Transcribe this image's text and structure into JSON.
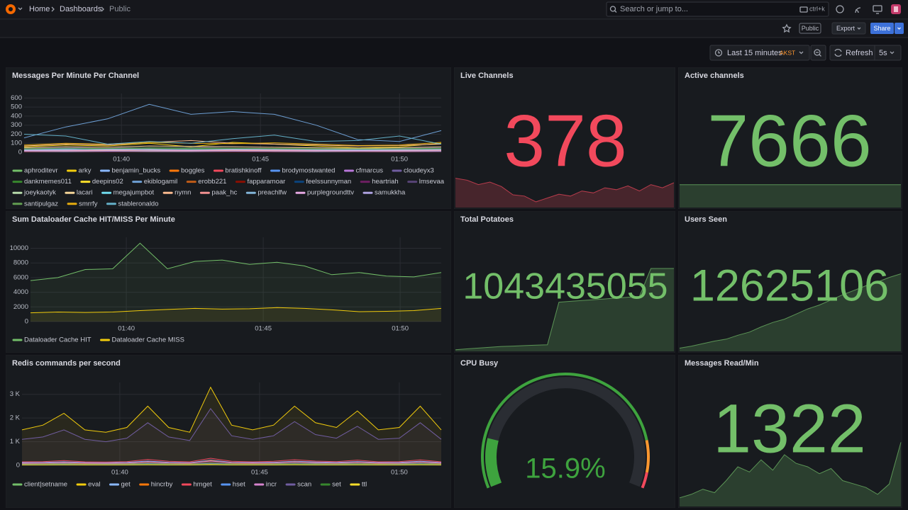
{
  "header": {
    "breadcrumb": [
      "Home",
      "Dashboards",
      "Public"
    ],
    "search_placeholder": "Search or jump to...",
    "search_shortcut": "ctrl+k"
  },
  "toolbar": {
    "badge": "Public",
    "export": "Export",
    "share": "Share",
    "time_range": "Last 15 minutes",
    "timezone": "AKST",
    "refresh": "Refresh",
    "refresh_interval": "5s"
  },
  "chart_data": [
    {
      "type": "timeseries",
      "title": "Messages Per Minute Per Channel",
      "x": [
        96.5,
        98,
        99.5,
        101,
        102.5,
        104,
        105.5,
        107,
        108.5,
        110,
        111.5
      ],
      "xlim": [
        96.5,
        111.5
      ],
      "xticks": [
        {
          "value": 100,
          "label": "01:40"
        },
        {
          "value": 105,
          "label": "01:45"
        },
        {
          "value": 110,
          "label": "01:50"
        }
      ],
      "ylim": [
        0,
        650
      ],
      "yticks": [
        0,
        100,
        200,
        300,
        400,
        500,
        600
      ],
      "grid": true,
      "fill_opacity": 0,
      "series": [
        {
          "name": "aphroditevr",
          "color": "#73bf69",
          "values": [
            20,
            25,
            30,
            22,
            28,
            35,
            30,
            25,
            20,
            22,
            30
          ]
        },
        {
          "name": "arky",
          "color": "#f2cc0c",
          "values": [
            60,
            80,
            70,
            100,
            60,
            110,
            90,
            70,
            50,
            60,
            100
          ]
        },
        {
          "name": "benjamin_bucks",
          "color": "#8ab8ff",
          "values": [
            40,
            35,
            30,
            45,
            50,
            40,
            35,
            30,
            25,
            40,
            45
          ]
        },
        {
          "name": "boggles",
          "color": "#ff780a",
          "values": [
            15,
            20,
            18,
            25,
            22,
            20,
            18,
            15,
            20,
            22,
            25
          ]
        },
        {
          "name": "bratishkinoff",
          "color": "#f2495c",
          "values": [
            10,
            12,
            15,
            10,
            12,
            18,
            15,
            10,
            8,
            10,
            12
          ]
        },
        {
          "name": "brodymostwanted",
          "color": "#5794f2",
          "values": [
            30,
            40,
            35,
            50,
            45,
            40,
            35,
            30,
            35,
            40,
            50
          ]
        },
        {
          "name": "cfmarcus",
          "color": "#b877d9",
          "values": [
            25,
            20,
            30,
            28,
            25,
            22,
            30,
            25,
            20,
            18,
            22
          ]
        },
        {
          "name": "cloudeyx3",
          "color": "#705da0",
          "values": [
            12,
            15,
            10,
            14,
            18,
            12,
            10,
            15,
            12,
            10,
            14
          ]
        },
        {
          "name": "dankmemes011",
          "color": "#37872d",
          "values": [
            35,
            30,
            40,
            45,
            38,
            42,
            40,
            35,
            30,
            32,
            40
          ]
        },
        {
          "name": "deepins02",
          "color": "#fade2a",
          "values": [
            8,
            10,
            12,
            10,
            8,
            12,
            10,
            8,
            10,
            12,
            10
          ]
        },
        {
          "name": "ekiblogamil",
          "color": "#6d9fd4",
          "values": [
            160,
            280,
            370,
            530,
            420,
            450,
            420,
            300,
            140,
            120,
            240
          ]
        },
        {
          "name": "erobb221",
          "color": "#c15c17",
          "values": [
            18,
            22,
            25,
            20,
            18,
            25,
            22,
            20,
            15,
            18,
            20
          ]
        },
        {
          "name": "fapparamoar",
          "color": "#890f02",
          "values": [
            5,
            8,
            6,
            10,
            8,
            6,
            5,
            8,
            6,
            5,
            8
          ]
        },
        {
          "name": "feelssunnyman",
          "color": "#0a437c",
          "values": [
            22,
            18,
            25,
            30,
            28,
            20,
            22,
            25,
            20,
            18,
            22
          ]
        },
        {
          "name": "heartriah",
          "color": "#6d1f62",
          "values": [
            10,
            12,
            8,
            15,
            12,
            10,
            8,
            12,
            10,
            8,
            10
          ]
        },
        {
          "name": "lmsevaa",
          "color": "#584477",
          "values": [
            45,
            50,
            55,
            48,
            52,
            60,
            55,
            50,
            45,
            48,
            52
          ]
        },
        {
          "name": "joeykaotyk",
          "color": "#b7dbab",
          "values": [
            28,
            32,
            30,
            35,
            30,
            28,
            32,
            30,
            28,
            30,
            32
          ]
        },
        {
          "name": "lacari",
          "color": "#f4d598",
          "values": [
            50,
            60,
            55,
            70,
            65,
            60,
            55,
            50,
            45,
            50,
            60
          ]
        },
        {
          "name": "megajumpbot",
          "color": "#70dbed",
          "values": [
            15,
            18,
            20,
            16,
            18,
            22,
            20,
            18,
            15,
            16,
            18
          ]
        },
        {
          "name": "nymn",
          "color": "#f9ba8f",
          "values": [
            70,
            90,
            80,
            110,
            130,
            100,
            90,
            80,
            70,
            75,
            90
          ]
        },
        {
          "name": "paak_hc",
          "color": "#f29191",
          "values": [
            12,
            15,
            18,
            14,
            16,
            20,
            18,
            15,
            12,
            14,
            16
          ]
        },
        {
          "name": "preachlfw",
          "color": "#82b5d8",
          "values": [
            30,
            28,
            35,
            32,
            30,
            35,
            32,
            30,
            28,
            30,
            34
          ]
        },
        {
          "name": "purplegroundttv",
          "color": "#e5a8e2",
          "values": [
            20,
            22,
            25,
            24,
            22,
            26,
            24,
            22,
            20,
            22,
            24
          ]
        },
        {
          "name": "samukkha",
          "color": "#aea2e0",
          "values": [
            10,
            8,
            12,
            10,
            9,
            12,
            10,
            8,
            10,
            9,
            11
          ]
        },
        {
          "name": "santipulgaz",
          "color": "#629e51",
          "values": [
            40,
            45,
            42,
            50,
            48,
            45,
            42,
            40,
            38,
            40,
            45
          ]
        },
        {
          "name": "smrrfy",
          "color": "#e5ac0e",
          "values": [
            80,
            100,
            90,
            110,
            100,
            95,
            105,
            90,
            75,
            80,
            110
          ]
        },
        {
          "name": "stableronaldo",
          "color": "#64b0c8",
          "values": [
            200,
            180,
            90,
            120,
            100,
            150,
            190,
            120,
            130,
            180,
            90
          ]
        }
      ]
    },
    {
      "type": "stat",
      "title": "Live Channels",
      "value": 378,
      "color": "#f2495c",
      "sparkline": [
        392,
        386,
        372,
        380,
        366,
        340,
        336,
        318,
        330,
        342,
        336,
        352,
        346,
        362,
        356,
        368,
        352,
        372,
        362,
        378
      ],
      "sparkline_ylim": [
        300,
        440
      ]
    },
    {
      "type": "stat",
      "title": "Active channels",
      "value": 7666,
      "color": "#73bf69",
      "sparkline": [
        7666,
        7666,
        7666,
        7666,
        7666,
        7666,
        7666,
        7666,
        7666,
        7666,
        7666,
        7666,
        7666,
        7666,
        7666,
        7666,
        7666,
        7666,
        7666,
        7666
      ],
      "sparkline_ylim": [
        0,
        15000
      ]
    },
    {
      "type": "timeseries",
      "title": "Sum Dataloader Cache HIT/MISS Per Minute",
      "x": [
        96.5,
        97.5,
        98.5,
        99.5,
        100.5,
        101.5,
        102.5,
        103.5,
        104.5,
        105.5,
        106.5,
        107.5,
        108.5,
        109.5,
        110.5,
        111.5
      ],
      "xlim": [
        96.5,
        111.5
      ],
      "xticks": [
        {
          "value": 100,
          "label": "01:40"
        },
        {
          "value": 105,
          "label": "01:45"
        },
        {
          "value": 110,
          "label": "01:50"
        }
      ],
      "ylim": [
        0,
        11500
      ],
      "yticks": [
        0,
        2000,
        4000,
        6000,
        8000,
        10000
      ],
      "grid": true,
      "fill_opacity": 0.08,
      "series": [
        {
          "name": "Dataloader Cache HIT",
          "color": "#73bf69",
          "values": [
            5600,
            6000,
            7100,
            7200,
            10700,
            7200,
            8200,
            8400,
            7800,
            8100,
            7600,
            6400,
            6700,
            6200,
            6100,
            6700
          ]
        },
        {
          "name": "Dataloader Cache MISS",
          "color": "#f2cc0c",
          "values": [
            1200,
            1300,
            1250,
            1300,
            1500,
            1650,
            1800,
            1700,
            1750,
            1900,
            1800,
            1600,
            1350,
            1400,
            1500,
            1800
          ]
        }
      ]
    },
    {
      "type": "stat",
      "title": "Total Potatoes",
      "value": 1043435055,
      "color": "#73bf69",
      "sparkline": [
        1043430100,
        1043430150,
        1043430200,
        1043430250,
        1043430300,
        1043430320,
        1043430350,
        1043430380,
        1043430400,
        1043433000,
        1043433050,
        1043433100,
        1043433150,
        1043433200,
        1043433250,
        1043433300,
        1043433350,
        1043435055,
        1043435055,
        1043435055
      ],
      "sparkline_ylim": [
        1043430000,
        1043435100
      ]
    },
    {
      "type": "stat",
      "title": "Users Seen",
      "value": 12625106,
      "color": "#73bf69",
      "sparkline": [
        12623950,
        12623980,
        12624020,
        12624060,
        12624090,
        12624150,
        12624200,
        12624280,
        12624350,
        12624400,
        12624480,
        12624560,
        12624620,
        12624700,
        12624780,
        12624850,
        12624920,
        12624980,
        12625050,
        12625106
      ],
      "sparkline_ylim": [
        12623900,
        12625200
      ]
    },
    {
      "type": "timeseries",
      "title": "Redis commands per second",
      "x": [
        96.5,
        97.25,
        98,
        98.75,
        99.5,
        100.25,
        101,
        101.75,
        102.5,
        103.25,
        104,
        104.75,
        105.5,
        106.25,
        107,
        107.75,
        108.5,
        109.25,
        110,
        110.75,
        111.5
      ],
      "xlim": [
        96.5,
        111.5
      ],
      "xticks": [
        {
          "value": 100,
          "label": "01:40"
        },
        {
          "value": 105,
          "label": "01:45"
        },
        {
          "value": 110,
          "label": "01:50"
        }
      ],
      "ylim": [
        0,
        3500
      ],
      "yticks": [
        0,
        {
          "value": 1000,
          "label": "1 K"
        },
        {
          "value": 2000,
          "label": "2 K"
        },
        {
          "value": 3000,
          "label": "3 K"
        }
      ],
      "grid": true,
      "fill_opacity": 0.08,
      "series": [
        {
          "name": "client|setname",
          "color": "#73bf69",
          "values": [
            60,
            70,
            80,
            60,
            70,
            65,
            90,
            70,
            60,
            100,
            70,
            65,
            70,
            90,
            75,
            65,
            85,
            60,
            70,
            90,
            60
          ]
        },
        {
          "name": "eval",
          "color": "#f2cc0c",
          "values": [
            1500,
            1700,
            2200,
            1500,
            1400,
            1600,
            2500,
            1600,
            1400,
            3300,
            1700,
            1500,
            1700,
            2500,
            1800,
            1600,
            2300,
            1500,
            1600,
            2500,
            1500
          ]
        },
        {
          "name": "get",
          "color": "#8ab8ff",
          "values": [
            120,
            130,
            150,
            120,
            110,
            125,
            180,
            130,
            115,
            220,
            130,
            120,
            130,
            170,
            140,
            125,
            160,
            120,
            130,
            170,
            120
          ]
        },
        {
          "name": "hincrby",
          "color": "#ff780a",
          "values": [
            80,
            90,
            110,
            85,
            80,
            90,
            140,
            95,
            85,
            200,
            100,
            85,
            95,
            150,
            105,
            90,
            130,
            85,
            90,
            140,
            85
          ]
        },
        {
          "name": "hmget",
          "color": "#f2495c",
          "values": [
            150,
            160,
            200,
            150,
            140,
            160,
            250,
            170,
            150,
            300,
            170,
            150,
            170,
            240,
            180,
            160,
            220,
            150,
            160,
            230,
            150
          ]
        },
        {
          "name": "hset",
          "color": "#5794f2",
          "values": [
            40,
            45,
            50,
            40,
            38,
            42,
            60,
            45,
            40,
            70,
            45,
            40,
            45,
            55,
            48,
            42,
            52,
            40,
            44,
            56,
            40
          ]
        },
        {
          "name": "incr",
          "color": "#d683ce",
          "values": [
            90,
            100,
            120,
            95,
            90,
            100,
            150,
            105,
            95,
            180,
            110,
            95,
            105,
            145,
            115,
            100,
            135,
            95,
            100,
            140,
            95
          ]
        },
        {
          "name": "scan",
          "color": "#705da0",
          "values": [
            1100,
            1200,
            1500,
            1100,
            1000,
            1150,
            1800,
            1200,
            1050,
            2400,
            1250,
            1100,
            1250,
            1850,
            1300,
            1150,
            1650,
            1100,
            1150,
            1800,
            1100
          ]
        },
        {
          "name": "set",
          "color": "#37872d",
          "values": [
            30,
            35,
            40,
            32,
            30,
            34,
            45,
            36,
            32,
            55,
            36,
            32,
            36,
            44,
            38,
            34,
            42,
            32,
            34,
            44,
            32
          ]
        },
        {
          "name": "ttl",
          "color": "#fade2a",
          "values": [
            20,
            22,
            26,
            21,
            20,
            22,
            30,
            24,
            21,
            35,
            24,
            21,
            24,
            29,
            25,
            22,
            28,
            21,
            22,
            29,
            21
          ]
        }
      ]
    },
    {
      "type": "gauge",
      "title": "CPU Busy",
      "value": 15.9,
      "value_label": "15.9%",
      "min": 0,
      "max": 100,
      "color": "#3ea33e",
      "thresholds": [
        {
          "value": 0,
          "color": "#3ea33e"
        },
        {
          "value": 85,
          "color": "#ff9830"
        },
        {
          "value": 95,
          "color": "#f2495c"
        }
      ]
    },
    {
      "type": "stat",
      "title": "Messages Read/Min",
      "value": 1322,
      "color": "#73bf69",
      "sparkline": [
        1000,
        1020,
        1050,
        1030,
        1100,
        1180,
        1150,
        1220,
        1160,
        1250,
        1200,
        1180,
        1140,
        1170,
        1100,
        1080,
        1060,
        1020,
        1080,
        1322
      ],
      "sparkline_ylim": [
        950,
        1500
      ]
    }
  ]
}
